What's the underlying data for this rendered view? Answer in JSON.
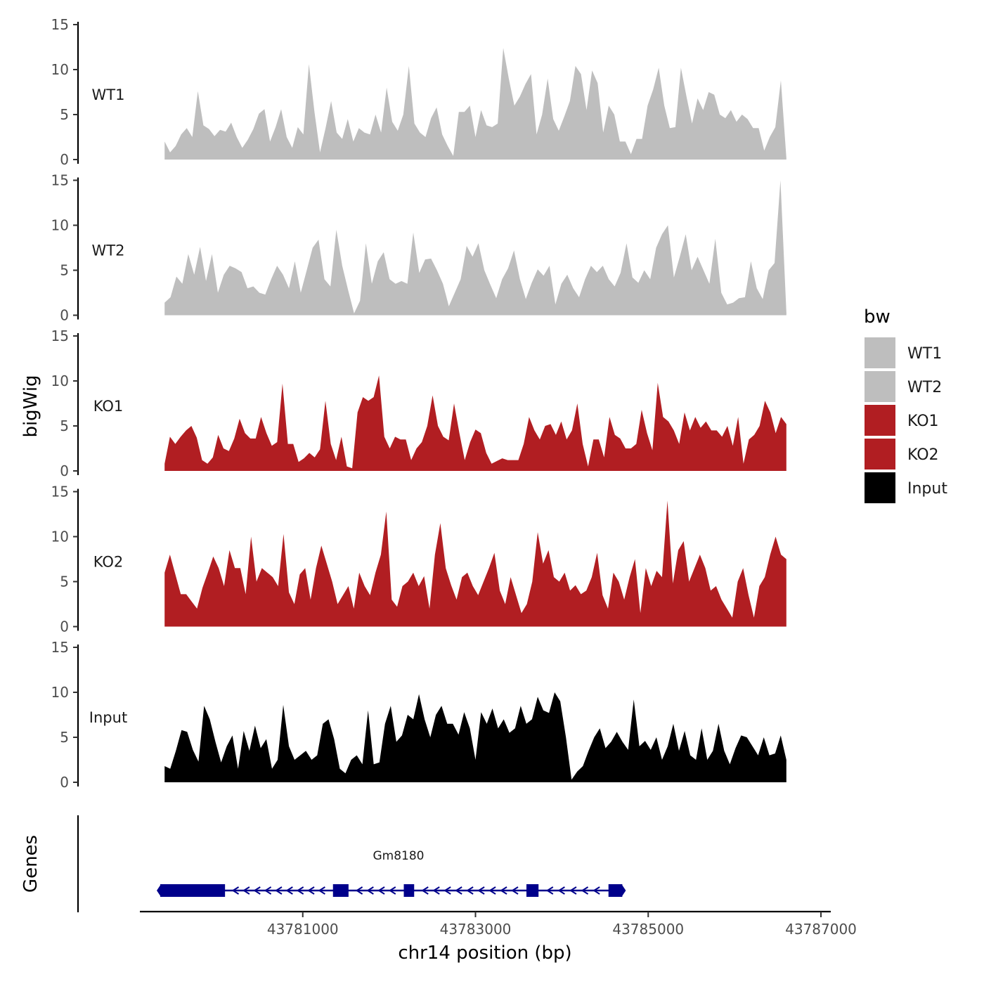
{
  "chart_data": {
    "type": "area",
    "title": "",
    "ylabel": "bigWig",
    "xlabel": "chr14 position (bp)",
    "ylim": [
      0,
      15
    ],
    "yticks": [
      0,
      5,
      10,
      15
    ],
    "xlim": [
      43779000,
      43787000
    ],
    "xticks": [
      43781000,
      43783000,
      43785000,
      43787000
    ],
    "xtick_labels": [
      "43781000",
      "43783000",
      "43785000",
      "43787000"
    ],
    "data_x_start": 43779400,
    "data_x_end": 43786600,
    "tracks": [
      {
        "name": "WT1",
        "color": "#bebebe",
        "values": [
          2.0,
          0.8,
          1.5,
          2.8,
          3.5,
          2.5,
          7.6,
          3.8,
          3.4,
          2.6,
          3.3,
          3.1,
          4.1,
          2.5,
          1.3,
          2.2,
          3.4,
          5.1,
          5.6,
          2.0,
          3.6,
          5.6,
          2.5,
          1.3,
          3.6,
          2.8,
          10.6,
          5.3,
          0.8,
          3.5,
          6.5,
          3.0,
          2.3,
          4.5,
          2.0,
          3.5,
          3.0,
          2.8,
          5.0,
          3.0,
          8.0,
          4.2,
          3.2,
          5.0,
          10.4,
          4.0,
          3.0,
          2.5,
          4.6,
          5.8,
          2.8,
          1.5,
          0.4,
          5.3,
          5.3,
          6.0,
          2.5,
          5.5,
          3.8,
          3.6,
          4.0,
          12.4,
          9.0,
          6.0,
          7.0,
          8.4,
          9.5,
          2.8,
          5.0,
          9.0,
          4.5,
          3.2,
          4.8,
          6.5,
          10.4,
          9.5,
          5.5,
          9.9,
          8.5,
          3.0,
          6.0,
          5.0,
          2.0,
          2.0,
          0.6,
          2.3,
          2.3,
          6.0,
          7.8,
          10.2,
          6.0,
          3.5,
          3.6,
          10.2,
          7.0,
          4.0,
          6.8,
          5.5,
          7.5,
          7.2,
          5.0,
          4.6,
          5.5,
          4.2,
          5.0,
          4.5,
          3.5,
          3.5,
          1.0,
          2.5,
          3.6,
          8.8,
          0.2
        ]
      },
      {
        "name": "WT2",
        "color": "#bebebe",
        "values": [
          1.4,
          2.0,
          4.3,
          3.5,
          6.8,
          4.5,
          7.6,
          3.8,
          6.8,
          2.5,
          4.5,
          5.5,
          5.2,
          4.8,
          3.0,
          3.2,
          2.5,
          2.3,
          4.0,
          5.5,
          4.5,
          3.0,
          6.0,
          2.5,
          5.0,
          7.5,
          8.4,
          4.0,
          3.2,
          9.5,
          5.5,
          2.8,
          0.2,
          1.6,
          8.0,
          3.5,
          6.0,
          7.0,
          4.0,
          3.5,
          3.8,
          3.5,
          9.2,
          4.7,
          6.2,
          6.3,
          5.0,
          3.5,
          1.0,
          2.5,
          4.0,
          7.7,
          6.5,
          8.0,
          5.0,
          3.4,
          1.9,
          4.0,
          5.2,
          7.2,
          4.0,
          1.8,
          3.6,
          5.1,
          4.4,
          5.5,
          1.2,
          3.5,
          4.5,
          3.0,
          2.0,
          4.0,
          5.5,
          4.8,
          5.5,
          4.0,
          3.2,
          4.7,
          8.0,
          4.2,
          3.6,
          5.0,
          4.0,
          7.5,
          9.0,
          10.0,
          4.2,
          6.5,
          9.0,
          5.0,
          6.5,
          5.0,
          3.5,
          8.5,
          2.5,
          1.2,
          1.4,
          1.9,
          2.0,
          6.0,
          3.0,
          1.8,
          5.0,
          5.8,
          15.0,
          0.2
        ]
      },
      {
        "name": "KO1",
        "color": "#b11e22",
        "values": [
          0.8,
          3.8,
          3.0,
          3.8,
          4.5,
          5.0,
          3.7,
          1.2,
          0.8,
          1.5,
          4.0,
          2.5,
          2.2,
          3.6,
          5.8,
          4.2,
          3.6,
          3.6,
          6.0,
          4.2,
          2.8,
          3.2,
          9.7,
          3.0,
          3.0,
          1.0,
          1.4,
          2.0,
          1.5,
          2.4,
          7.8,
          3.0,
          1.2,
          3.8,
          0.5,
          0.3,
          6.5,
          8.2,
          7.8,
          8.2,
          10.6,
          3.8,
          2.5,
          3.8,
          3.5,
          3.5,
          1.2,
          2.5,
          3.2,
          5.0,
          8.4,
          5.0,
          3.8,
          3.4,
          7.5,
          4.2,
          1.2,
          3.2,
          4.6,
          4.2,
          2.0,
          0.8,
          1.1,
          1.4,
          1.2,
          1.2,
          1.2,
          3.0,
          6.0,
          4.5,
          3.5,
          5.0,
          5.2,
          4.0,
          5.5,
          3.5,
          4.5,
          7.5,
          3.0,
          0.5,
          3.5,
          3.5,
          1.5,
          6.0,
          4.0,
          3.6,
          2.5,
          2.5,
          3.0,
          6.8,
          4.2,
          2.3,
          9.8,
          6.0,
          5.5,
          4.5,
          3.0,
          6.5,
          4.5,
          6.0,
          4.8,
          5.5,
          4.5,
          4.5,
          3.8,
          5.0,
          2.8,
          6.0,
          0.8,
          3.5,
          4.0,
          5.0,
          7.8,
          6.5,
          4.2,
          6.0,
          5.2
        ]
      },
      {
        "name": "KO2",
        "color": "#b11e22",
        "values": [
          6.0,
          8.0,
          5.8,
          3.6,
          3.6,
          2.8,
          2.0,
          4.3,
          6.0,
          7.8,
          6.5,
          4.5,
          8.5,
          6.5,
          6.5,
          3.6,
          10.0,
          5.0,
          6.5,
          6.0,
          5.5,
          4.5,
          10.3,
          3.8,
          2.5,
          5.8,
          6.5,
          3.0,
          6.5,
          9.0,
          7.0,
          5.0,
          2.5,
          3.5,
          4.5,
          2.0,
          6.0,
          4.5,
          3.5,
          6.0,
          8.0,
          12.8,
          3.0,
          2.2,
          4.5,
          5.0,
          6.0,
          4.5,
          5.6,
          2.0,
          8.0,
          11.5,
          6.5,
          4.6,
          3.0,
          5.5,
          6.0,
          4.5,
          3.5,
          5.0,
          6.5,
          8.2,
          4.0,
          2.5,
          5.5,
          3.5,
          1.5,
          2.5,
          5.0,
          10.5,
          7.0,
          8.5,
          5.5,
          5.0,
          6.0,
          4.0,
          4.6,
          3.6,
          4.0,
          5.5,
          8.2,
          3.5,
          2.0,
          6.0,
          5.0,
          3.0,
          5.5,
          7.5,
          1.5,
          6.5,
          4.5,
          6.2,
          5.5,
          14.0,
          4.8,
          8.5,
          9.5,
          5.0,
          6.5,
          8.0,
          6.5,
          4.0,
          4.5,
          3.0,
          2.0,
          1.0,
          5.0,
          6.5,
          3.5,
          1.0,
          4.5,
          5.5,
          8.0,
          10.0,
          8.0,
          7.5
        ]
      },
      {
        "name": "Input",
        "color": "#000000",
        "values": [
          1.8,
          1.5,
          3.5,
          5.8,
          5.6,
          3.6,
          2.3,
          8.5,
          7.0,
          4.5,
          2.2,
          4.0,
          5.2,
          1.5,
          5.7,
          3.5,
          6.3,
          3.8,
          4.8,
          1.5,
          2.5,
          8.6,
          4.0,
          2.5,
          3.0,
          3.5,
          2.5,
          3.0,
          6.5,
          7.0,
          4.8,
          1.5,
          1.0,
          2.5,
          3.0,
          2.0,
          8.0,
          2.0,
          2.2,
          6.5,
          8.5,
          4.5,
          5.2,
          7.5,
          7.0,
          9.8,
          7.0,
          5.0,
          7.5,
          8.5,
          6.5,
          6.5,
          5.3,
          7.8,
          6.0,
          2.5,
          7.8,
          6.5,
          8.2,
          6.0,
          7.0,
          5.5,
          6.0,
          8.5,
          6.5,
          7.0,
          9.5,
          8.0,
          7.7,
          10.0,
          9.0,
          5.0,
          0.3,
          1.2,
          1.8,
          3.5,
          5.0,
          6.0,
          3.8,
          4.5,
          5.6,
          4.5,
          3.6,
          9.2,
          4.0,
          4.6,
          3.6,
          5.0,
          2.5,
          4.0,
          6.5,
          3.5,
          5.7,
          3.0,
          2.5,
          6.0,
          2.5,
          3.5,
          6.5,
          3.5,
          2.0,
          3.8,
          5.2,
          5.0,
          4.0,
          3.0,
          5.0,
          3.0,
          3.2,
          5.2,
          2.5
        ]
      }
    ],
    "legend": {
      "title": "bw",
      "position": "right",
      "entries": [
        {
          "label": "WT1",
          "color": "#bebebe"
        },
        {
          "label": "WT2",
          "color": "#bebebe"
        },
        {
          "label": "KO1",
          "color": "#b11e22"
        },
        {
          "label": "KO2",
          "color": "#b11e22"
        },
        {
          "label": "Input",
          "color": "#000000"
        }
      ]
    },
    "genes": {
      "title": "Genes",
      "color": "#00008b",
      "name": "Gm8180",
      "strand": "-",
      "start": 43779350,
      "end": 43784700,
      "exons": [
        [
          43779350,
          43780100
        ],
        [
          43781350,
          43781530
        ],
        [
          43782170,
          43782290
        ],
        [
          43783590,
          43783730
        ],
        [
          43784540,
          43784700
        ]
      ]
    }
  }
}
